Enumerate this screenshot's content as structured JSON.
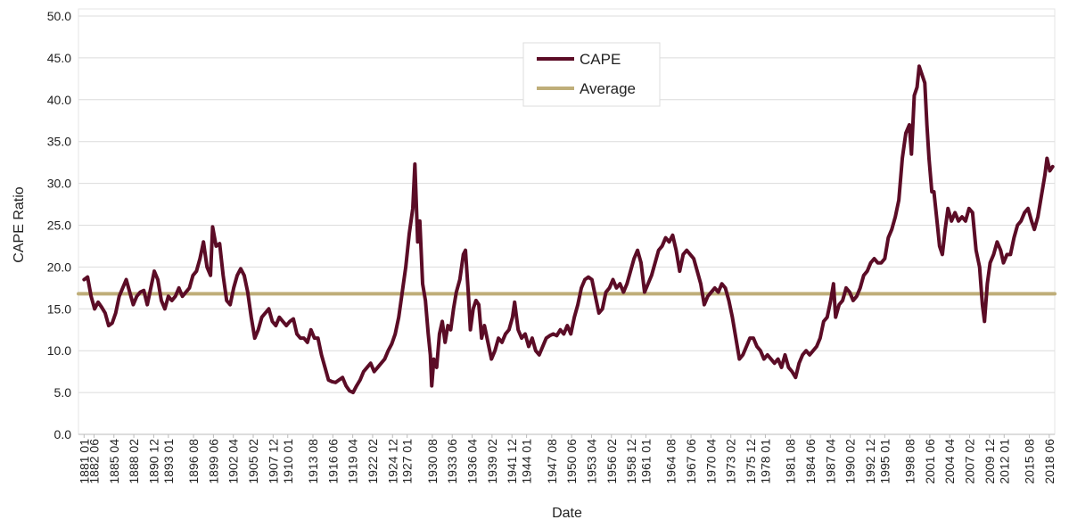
{
  "chart_data": {
    "type": "line",
    "xlabel": "Date",
    "ylabel": "CAPE Ratio",
    "xlim": [
      1880.2,
      2019.2
    ],
    "ylim": [
      0,
      50
    ],
    "yticks": [
      {
        "value": 0,
        "label": "0.0"
      },
      {
        "value": 5,
        "label": "5.0"
      },
      {
        "value": 10,
        "label": "10.0"
      },
      {
        "value": 15,
        "label": "15.0"
      },
      {
        "value": 20,
        "label": "20.0"
      },
      {
        "value": 25,
        "label": "25.0"
      },
      {
        "value": 30,
        "label": "30.0"
      },
      {
        "value": 35,
        "label": "35.0"
      },
      {
        "value": 40,
        "label": "40.0"
      },
      {
        "value": 45,
        "label": "45.0"
      },
      {
        "value": 50,
        "label": "50.0"
      }
    ],
    "xticks": [
      {
        "value": 1881,
        "label": "1881 01"
      },
      {
        "value": 1882.417,
        "label": "1882 06"
      },
      {
        "value": 1885.25,
        "label": "1885 04"
      },
      {
        "value": 1888.083,
        "label": "1888 02"
      },
      {
        "value": 1890.917,
        "label": "1890 12"
      },
      {
        "value": 1893,
        "label": "1893 01"
      },
      {
        "value": 1896.583,
        "label": "1896 08"
      },
      {
        "value": 1899.417,
        "label": "1899 06"
      },
      {
        "value": 1902.25,
        "label": "1902 04"
      },
      {
        "value": 1905.083,
        "label": "1905 02"
      },
      {
        "value": 1907.917,
        "label": "1907 12"
      },
      {
        "value": 1910,
        "label": "1910 01"
      },
      {
        "value": 1913.583,
        "label": "1913 08"
      },
      {
        "value": 1916.417,
        "label": "1916 06"
      },
      {
        "value": 1919.25,
        "label": "1919 04"
      },
      {
        "value": 1922.083,
        "label": "1922 02"
      },
      {
        "value": 1924.917,
        "label": "1924 12"
      },
      {
        "value": 1927,
        "label": "1927 01"
      },
      {
        "value": 1930.583,
        "label": "1930 08"
      },
      {
        "value": 1933.417,
        "label": "1933 06"
      },
      {
        "value": 1936.25,
        "label": "1936 04"
      },
      {
        "value": 1939.083,
        "label": "1939 02"
      },
      {
        "value": 1941.917,
        "label": "1941 12"
      },
      {
        "value": 1944,
        "label": "1944 01"
      },
      {
        "value": 1947.583,
        "label": "1947 08"
      },
      {
        "value": 1950.417,
        "label": "1950 06"
      },
      {
        "value": 1953.25,
        "label": "1953 04"
      },
      {
        "value": 1956.083,
        "label": "1956 02"
      },
      {
        "value": 1958.917,
        "label": "1958 12"
      },
      {
        "value": 1961,
        "label": "1961 01"
      },
      {
        "value": 1964.583,
        "label": "1964 08"
      },
      {
        "value": 1967.417,
        "label": "1967 06"
      },
      {
        "value": 1970.25,
        "label": "1970 04"
      },
      {
        "value": 1973.083,
        "label": "1973 02"
      },
      {
        "value": 1975.917,
        "label": "1975 12"
      },
      {
        "value": 1978,
        "label": "1978 01"
      },
      {
        "value": 1981.583,
        "label": "1981 08"
      },
      {
        "value": 1984.417,
        "label": "1984 06"
      },
      {
        "value": 1987.25,
        "label": "1987 04"
      },
      {
        "value": 1990.083,
        "label": "1990 02"
      },
      {
        "value": 1992.917,
        "label": "1992 12"
      },
      {
        "value": 1995,
        "label": "1995 01"
      },
      {
        "value": 1998.583,
        "label": "1998 08"
      },
      {
        "value": 2001.417,
        "label": "2001 06"
      },
      {
        "value": 2004.25,
        "label": "2004 04"
      },
      {
        "value": 2007.083,
        "label": "2007 02"
      },
      {
        "value": 2009.917,
        "label": "2009 12"
      },
      {
        "value": 2012,
        "label": "2012 01"
      },
      {
        "value": 2015.583,
        "label": "2015 08"
      },
      {
        "value": 2018.417,
        "label": "2018 06"
      }
    ],
    "grid": true,
    "legend": "upper center",
    "series": [
      {
        "name": "CAPE",
        "color": "#5b0c26",
        "x": [
          1881.0,
          1881.5,
          1882.0,
          1882.5,
          1883.0,
          1883.5,
          1884.0,
          1884.5,
          1885.0,
          1885.5,
          1886.0,
          1886.5,
          1887.0,
          1887.5,
          1888.0,
          1888.5,
          1889.0,
          1889.5,
          1890.0,
          1890.5,
          1891.0,
          1891.5,
          1892.0,
          1892.5,
          1893.0,
          1893.5,
          1894.0,
          1894.5,
          1895.0,
          1895.5,
          1896.0,
          1896.5,
          1897.0,
          1897.5,
          1898.0,
          1898.5,
          1899.0,
          1899.3,
          1899.8,
          1900.3,
          1900.8,
          1901.3,
          1901.8,
          1902.3,
          1902.8,
          1903.3,
          1903.8,
          1904.3,
          1904.8,
          1905.3,
          1905.8,
          1906.3,
          1906.8,
          1907.3,
          1907.8,
          1908.3,
          1908.8,
          1909.3,
          1909.8,
          1910.3,
          1910.8,
          1911.3,
          1911.8,
          1912.3,
          1912.8,
          1913.3,
          1913.8,
          1914.3,
          1914.8,
          1915.3,
          1915.8,
          1916.3,
          1916.8,
          1917.3,
          1917.8,
          1918.3,
          1918.8,
          1919.3,
          1919.8,
          1920.3,
          1920.8,
          1921.3,
          1921.8,
          1922.3,
          1922.8,
          1923.3,
          1923.8,
          1924.3,
          1924.8,
          1925.3,
          1925.8,
          1926.3,
          1926.8,
          1927.3,
          1927.8,
          1928.1,
          1928.5,
          1928.8,
          1929.2,
          1929.6,
          1930.0,
          1930.3,
          1930.5,
          1930.8,
          1931.2,
          1931.6,
          1932.0,
          1932.4,
          1932.8,
          1933.2,
          1933.6,
          1934.0,
          1934.5,
          1935.0,
          1935.3,
          1935.7,
          1936.0,
          1936.4,
          1936.8,
          1937.2,
          1937.6,
          1938.0,
          1938.5,
          1939.0,
          1939.5,
          1940.0,
          1940.5,
          1941.0,
          1941.5,
          1942.0,
          1942.3,
          1942.8,
          1943.3,
          1943.8,
          1944.3,
          1944.8,
          1945.3,
          1945.8,
          1946.3,
          1946.8,
          1947.3,
          1947.8,
          1948.3,
          1948.8,
          1949.3,
          1949.8,
          1950.3,
          1950.8,
          1951.3,
          1951.8,
          1952.3,
          1952.8,
          1953.3,
          1953.8,
          1954.3,
          1954.8,
          1955.3,
          1955.8,
          1956.3,
          1956.8,
          1957.3,
          1957.8,
          1958.3,
          1958.8,
          1959.3,
          1959.8,
          1960.3,
          1960.8,
          1961.3,
          1961.8,
          1962.3,
          1962.8,
          1963.3,
          1963.8,
          1964.3,
          1964.8,
          1965.3,
          1965.8,
          1966.3,
          1966.8,
          1967.3,
          1967.8,
          1968.3,
          1968.8,
          1969.3,
          1969.8,
          1970.3,
          1970.8,
          1971.3,
          1971.8,
          1972.3,
          1972.8,
          1973.3,
          1973.8,
          1974.3,
          1974.8,
          1975.3,
          1975.8,
          1976.3,
          1976.8,
          1977.3,
          1977.8,
          1978.3,
          1978.8,
          1979.3,
          1979.8,
          1980.3,
          1980.8,
          1981.3,
          1981.8,
          1982.3,
          1982.8,
          1983.3,
          1983.8,
          1984.3,
          1984.8,
          1985.3,
          1985.8,
          1986.3,
          1986.8,
          1987.3,
          1987.7,
          1988.0,
          1988.5,
          1989.0,
          1989.5,
          1990.0,
          1990.5,
          1991.0,
          1991.5,
          1992.0,
          1992.5,
          1993.0,
          1993.5,
          1994.0,
          1994.5,
          1995.0,
          1995.5,
          1996.0,
          1996.5,
          1997.0,
          1997.5,
          1998.0,
          1998.5,
          1998.8,
          1999.2,
          1999.6,
          1999.9,
          2000.3,
          2000.7,
          2001.0,
          2001.3,
          2001.7,
          2002.0,
          2002.5,
          2002.8,
          2003.2,
          2003.6,
          2004.0,
          2004.5,
          2005.0,
          2005.5,
          2006.0,
          2006.5,
          2007.0,
          2007.5,
          2008.0,
          2008.5,
          2008.9,
          2009.2,
          2009.6,
          2010.0,
          2010.5,
          2011.0,
          2011.5,
          2011.9,
          2012.4,
          2012.9,
          2013.4,
          2013.9,
          2014.4,
          2014.9,
          2015.4,
          2015.9,
          2016.3,
          2016.8,
          2017.3,
          2017.8,
          2018.1,
          2018.5,
          2018.9
        ],
        "values": [
          18.5,
          18.8,
          16.5,
          15.0,
          15.8,
          15.2,
          14.5,
          13.0,
          13.3,
          14.5,
          16.5,
          17.5,
          18.5,
          17.0,
          15.5,
          16.5,
          17.0,
          17.2,
          15.5,
          17.5,
          19.5,
          18.5,
          16.0,
          15.0,
          16.5,
          16.0,
          16.5,
          17.5,
          16.5,
          17.0,
          17.5,
          19.0,
          19.5,
          21.0,
          23.0,
          20.0,
          19.0,
          24.8,
          22.5,
          22.8,
          19.0,
          16.0,
          15.5,
          17.5,
          19.0,
          19.8,
          19.0,
          17.0,
          14.0,
          11.5,
          12.5,
          14.0,
          14.5,
          15.0,
          13.5,
          13.0,
          14.0,
          13.5,
          13.0,
          13.5,
          13.8,
          12.0,
          11.5,
          11.5,
          11.0,
          12.5,
          11.5,
          11.5,
          9.5,
          8.0,
          6.5,
          6.3,
          6.2,
          6.5,
          6.8,
          5.8,
          5.2,
          5.0,
          5.8,
          6.5,
          7.5,
          8.0,
          8.5,
          7.5,
          8.0,
          8.5,
          9.0,
          10.0,
          10.8,
          12.0,
          14.0,
          17.0,
          20.0,
          24.0,
          27.0,
          32.3,
          23.0,
          25.5,
          18.0,
          16.0,
          12.0,
          9.5,
          5.8,
          9.0,
          8.0,
          12.0,
          13.5,
          11.0,
          13.0,
          12.5,
          15.0,
          17.0,
          18.5,
          21.5,
          22.0,
          17.0,
          12.5,
          15.0,
          16.0,
          15.5,
          11.5,
          13.0,
          11.0,
          9.0,
          10.0,
          11.5,
          11.0,
          12.0,
          12.5,
          14.0,
          15.8,
          12.5,
          11.5,
          12.0,
          10.5,
          11.5,
          10.0,
          9.5,
          10.5,
          11.5,
          11.8,
          12.0,
          11.8,
          12.5,
          12.0,
          13.0,
          12.0,
          14.0,
          15.5,
          17.5,
          18.5,
          18.8,
          18.5,
          16.5,
          14.5,
          15.0,
          17.0,
          17.5,
          18.5,
          17.5,
          18.0,
          17.0,
          18.0,
          19.5,
          21.0,
          22.0,
          20.5,
          17.0,
          18.0,
          19.0,
          20.5,
          22.0,
          22.5,
          23.5,
          23.0,
          23.8,
          22.0,
          19.5,
          21.5,
          22.0,
          21.5,
          21.0,
          19.5,
          18.0,
          15.5,
          16.5,
          17.0,
          17.5,
          17.0,
          18.0,
          17.5,
          16.0,
          14.0,
          11.5,
          9.0,
          9.5,
          10.5,
          11.5,
          11.5,
          10.5,
          10.0,
          9.0,
          9.5,
          9.0,
          8.5,
          9.0,
          8.0,
          9.5,
          8.0,
          7.5,
          6.8,
          8.5,
          9.5,
          10.0,
          9.5,
          10.0,
          10.5,
          11.5,
          13.5,
          14.0,
          16.0,
          18.0,
          14.0,
          15.5,
          16.0,
          17.5,
          17.0,
          16.0,
          16.5,
          17.5,
          19.0,
          19.5,
          20.5,
          21.0,
          20.5,
          20.5,
          21.0,
          23.5,
          24.5,
          26.0,
          28.0,
          33.0,
          36.0,
          37.0,
          33.5,
          40.5,
          41.5,
          44.0,
          43.0,
          42.0,
          37.0,
          33.0,
          29.0,
          29.0,
          25.0,
          22.5,
          21.5,
          24.5,
          27.0,
          25.5,
          26.5,
          25.5,
          26.0,
          25.5,
          27.0,
          26.5,
          22.0,
          20.0,
          15.5,
          13.5,
          18.0,
          20.5,
          21.5,
          23.0,
          22.0,
          20.5,
          21.5,
          21.5,
          23.5,
          25.0,
          25.5,
          26.5,
          27.0,
          25.5,
          24.5,
          26.0,
          28.5,
          31.0,
          33.0,
          31.5,
          32.0
        ]
      },
      {
        "name": "Average",
        "color": "#bfae79",
        "x": [
          1880.2,
          2019.2
        ],
        "values": [
          16.8,
          16.8
        ]
      }
    ]
  }
}
